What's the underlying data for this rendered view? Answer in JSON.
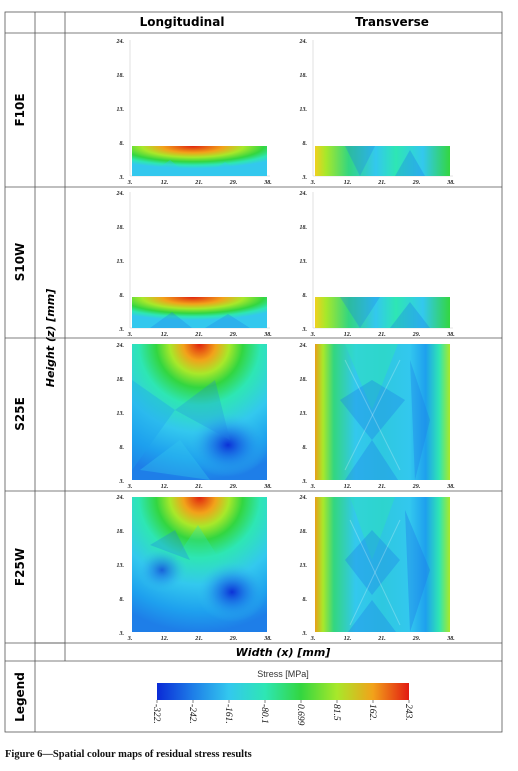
{
  "columns": [
    "Longitudinal",
    "Transverse"
  ],
  "rows": [
    "F10E",
    "S10W",
    "S25E",
    "F25W"
  ],
  "y_axis_label": "Height (z) [mm]",
  "x_axis_label": "Width (x) [mm]",
  "legend_row_label": "Legend",
  "legend": {
    "title": "Stress [MPa]",
    "ticks": [
      "-322.",
      "-242.",
      "-161.",
      "-80.1",
      "0.699",
      "81.5",
      "162.",
      "243."
    ],
    "colors": [
      "#0a2ad6",
      "#1e7ee8",
      "#33c8ee",
      "#2ee6b4",
      "#33d640",
      "#a8e82a",
      "#f2a21a",
      "#e21a12"
    ]
  },
  "x_ticks": [
    "3.",
    "12.",
    "21.",
    "29.",
    "38."
  ],
  "y_ticks": [
    "24.",
    "18.",
    "13.",
    "8.",
    "3."
  ],
  "caption": "Figure 6—Spatial colour maps of residual stress results"
}
